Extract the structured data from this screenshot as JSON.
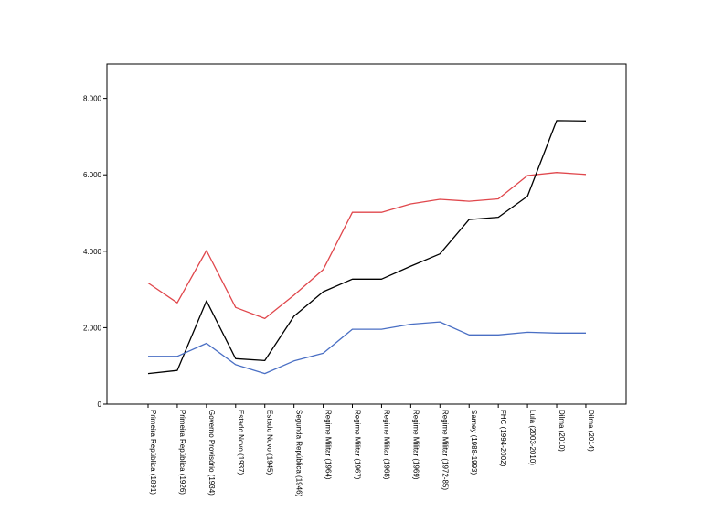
{
  "chart_data": {
    "type": "line",
    "title": "",
    "xlabel": "",
    "ylabel": "",
    "ylim": [
      0,
      8900
    ],
    "yticks": [
      0,
      2000,
      4000,
      6000,
      8000
    ],
    "ytick_labels": [
      "0",
      "2.000",
      "4.000",
      "6.000",
      "8.000"
    ],
    "grid": false,
    "categories": [
      "Primeira República (1891)",
      "Primeira República (1926)",
      "Governo Provisório (1934)",
      "Estado Novo (1937)",
      "Estado Novo (1945)",
      "Segunda República (1946)",
      "Regime Militar (1964)",
      "Regime Militar (1967)",
      "Regime Militar (1968)",
      "Regime Militar (1969)",
      "Regime Militar (1972-85)",
      "Sarney (1988-1993)",
      "FHC (1994-2002)",
      "Lula (2003-2010)",
      "Dilma (2010)",
      "Dilma (2014)"
    ],
    "series": [
      {
        "color": "#e0474c",
        "values": [
          3170,
          2650,
          4020,
          2530,
          2240,
          2850,
          3520,
          5020,
          5020,
          5240,
          5360,
          5310,
          5370,
          5980,
          6060,
          6010
        ]
      },
      {
        "color": "#000000",
        "values": [
          800,
          880,
          2700,
          1190,
          1140,
          2300,
          2940,
          3270,
          3270,
          3610,
          3930,
          4830,
          4890,
          5440,
          7420,
          7410
        ]
      },
      {
        "color": "#4a6fc4",
        "values": [
          1250,
          1250,
          1590,
          1030,
          800,
          1130,
          1330,
          1960,
          1960,
          2090,
          2150,
          1810,
          1810,
          1880,
          1860,
          1860
        ]
      }
    ]
  }
}
